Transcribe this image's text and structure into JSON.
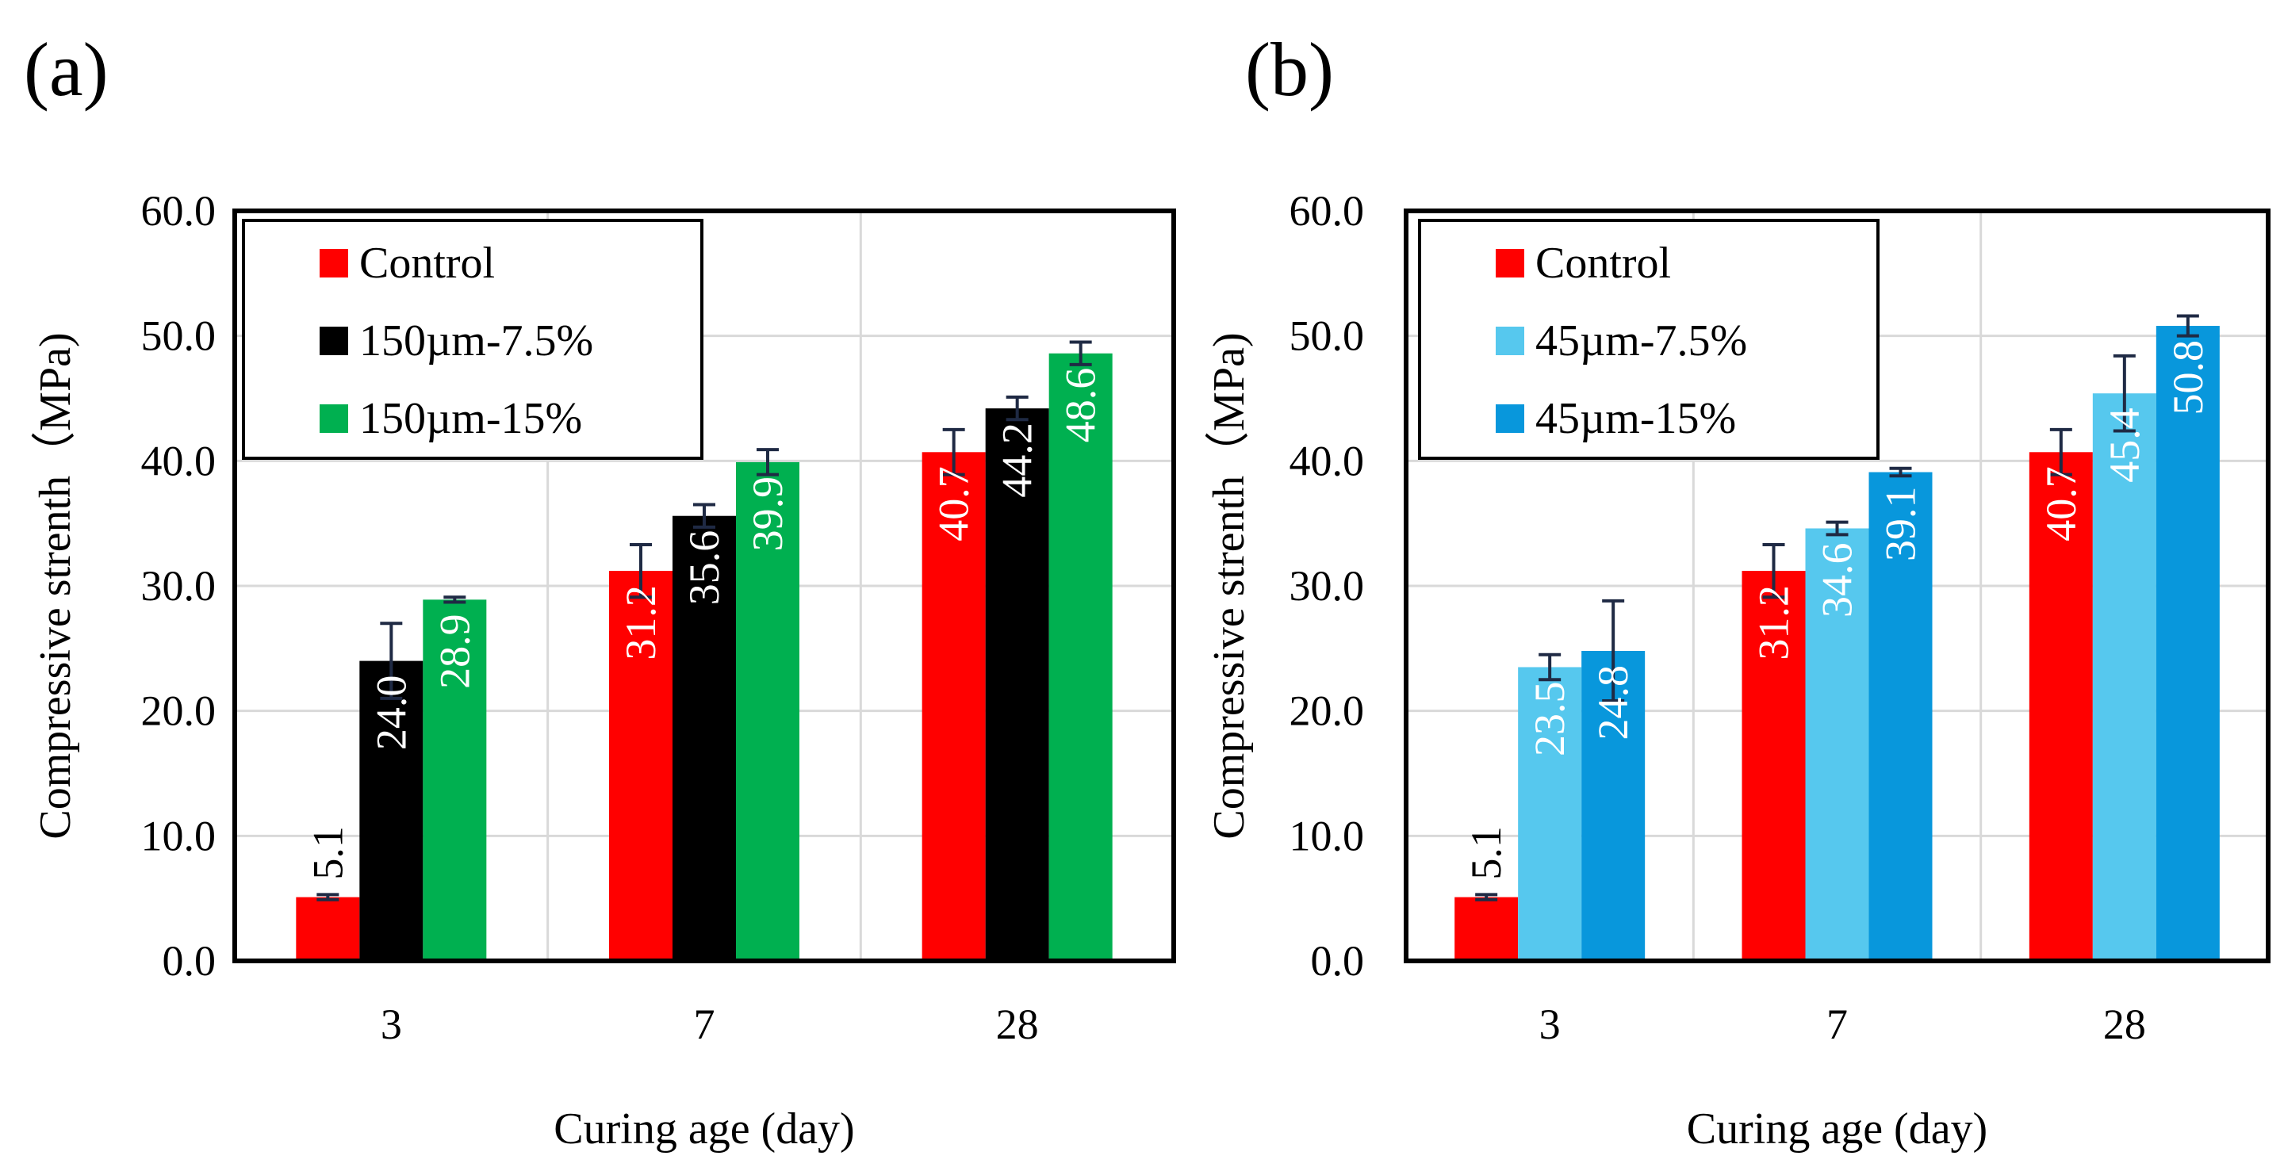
{
  "chart_data": [
    {
      "panel_label": "(a)",
      "type": "bar",
      "categories": [
        "3",
        "7",
        "28"
      ],
      "series": [
        {
          "name": "Control",
          "color": "#ff0000",
          "values": [
            5.1,
            31.2,
            40.7
          ],
          "labels": [
            "5.1",
            "31.2",
            "40.7"
          ],
          "errors": [
            0.2,
            2.1,
            1.8
          ]
        },
        {
          "name": "150µm-7.5%",
          "color": "#000000",
          "values": [
            24.0,
            35.6,
            44.2
          ],
          "labels": [
            "24.0",
            "35.6",
            "44.2"
          ],
          "errors": [
            3.0,
            0.9,
            0.9
          ]
        },
        {
          "name": "150µm-15%",
          "color": "#00b050",
          "values": [
            28.9,
            39.9,
            48.6
          ],
          "labels": [
            "28.9",
            "39.9",
            "48.6"
          ],
          "errors": [
            0.2,
            1.0,
            0.9
          ]
        }
      ],
      "xlabel": "Curing age (day)",
      "ylabel": "Compressive strenth（MPa)",
      "ylim": [
        0,
        60
      ],
      "yticks": [
        "0.0",
        "10.0",
        "20.0",
        "30.0",
        "40.0",
        "50.0",
        "60.0"
      ],
      "grid": true,
      "legend_position": "top-left"
    },
    {
      "panel_label": "(b)",
      "type": "bar",
      "categories": [
        "3",
        "7",
        "28"
      ],
      "series": [
        {
          "name": "Control",
          "color": "#ff0000",
          "values": [
            5.1,
            31.2,
            40.7
          ],
          "labels": [
            "5.1",
            "31.2",
            "40.7"
          ],
          "errors": [
            0.2,
            2.1,
            1.8
          ]
        },
        {
          "name": "45µm-7.5%",
          "color": "#56c8ee",
          "values": [
            23.5,
            34.6,
            45.4
          ],
          "labels": [
            "23.5",
            "34.6",
            "45.4"
          ],
          "errors": [
            1.0,
            0.5,
            3.0
          ]
        },
        {
          "name": "45µm-15%",
          "color": "#0897dc",
          "values": [
            24.8,
            39.1,
            50.8
          ],
          "labels": [
            "24.8",
            "39.1",
            "50.8"
          ],
          "errors": [
            4.0,
            0.3,
            0.8
          ]
        }
      ],
      "xlabel": "Curing age (day)",
      "ylabel": "Compressive strenth（MPa)",
      "ylim": [
        0,
        60
      ],
      "yticks": [
        "0.0",
        "10.0",
        "20.0",
        "30.0",
        "40.0",
        "50.0",
        "60.0"
      ],
      "grid": true,
      "legend_position": "top-left"
    }
  ]
}
